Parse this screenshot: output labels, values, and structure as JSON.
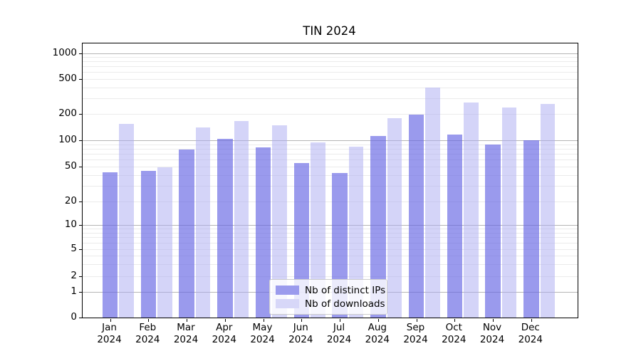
{
  "title": "TIN 2024",
  "legend": {
    "items": [
      {
        "label": "Nb of distinct IPs",
        "color": "#9b9bed",
        "fill": "rgba(101,101,227,0.66)"
      },
      {
        "label": "Nb of downloads",
        "color": "#d7d7f8",
        "fill": "rgba(173,173,241,0.52)"
      }
    ]
  },
  "axes": {
    "y_tick_labels": [
      "0",
      "1",
      "2",
      "5",
      "10",
      "20",
      "50",
      "100",
      "200",
      "500",
      "1000"
    ],
    "x_tick_labels": [
      {
        "month": "Jan",
        "year": "2024"
      },
      {
        "month": "Feb",
        "year": "2024"
      },
      {
        "month": "Mar",
        "year": "2024"
      },
      {
        "month": "Apr",
        "year": "2024"
      },
      {
        "month": "May",
        "year": "2024"
      },
      {
        "month": "Jun",
        "year": "2024"
      },
      {
        "month": "Jul",
        "year": "2024"
      },
      {
        "month": "Aug",
        "year": "2024"
      },
      {
        "month": "Sep",
        "year": "2024"
      },
      {
        "month": "Oct",
        "year": "2024"
      },
      {
        "month": "Nov",
        "year": "2024"
      },
      {
        "month": "Dec",
        "year": "2024"
      }
    ]
  },
  "chart_data": {
    "type": "bar",
    "title": "TIN 2024",
    "categories": [
      "Jan 2024",
      "Feb 2024",
      "Mar 2024",
      "Apr 2024",
      "May 2024",
      "Jun 2024",
      "Jul 2024",
      "Aug 2024",
      "Sep 2024",
      "Oct 2024",
      "Nov 2024",
      "Dec 2024"
    ],
    "series": [
      {
        "name": "Nb of distinct IPs",
        "color": "#9b9bed",
        "values": [
          43,
          45,
          78,
          103,
          83,
          55,
          42,
          112,
          193,
          115,
          89,
          101
        ]
      },
      {
        "name": "Nb of downloads",
        "color": "#d7d7f8",
        "values": [
          152,
          49,
          140,
          164,
          148,
          94,
          84,
          177,
          400,
          270,
          235,
          260
        ]
      }
    ],
    "xlabel": "",
    "ylabel": "",
    "yscale": "symlog",
    "y_ticks": [
      0,
      1,
      2,
      5,
      10,
      20,
      50,
      100,
      200,
      500,
      1000
    ],
    "ylim": [
      0,
      1300
    ],
    "grid": "on",
    "legend_position": "lower center"
  }
}
